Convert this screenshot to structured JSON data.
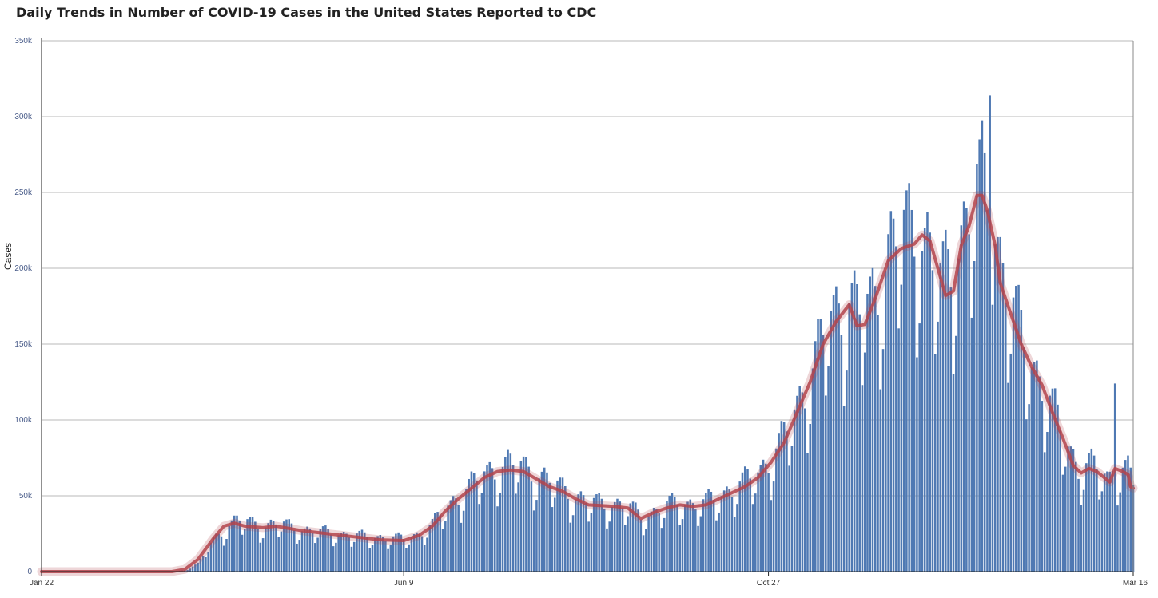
{
  "chart_data": {
    "type": "bar",
    "title": "Daily Trends in Number of COVID-19 Cases in the United States Reported to CDC",
    "ylabel": "Cases",
    "xlabel": "",
    "ylim": [
      0,
      350000
    ],
    "y_ticks": [
      0,
      50000,
      100000,
      150000,
      200000,
      250000,
      300000,
      350000
    ],
    "y_tick_labels": [
      "0",
      "50k",
      "100k",
      "150k",
      "200k",
      "250k",
      "300k",
      "350k"
    ],
    "x_tick_labels": [
      "Jan 22",
      "Jun 9",
      "Oct 27",
      "Mar 16"
    ],
    "x_tick_days": [
      0,
      139,
      279,
      419
    ],
    "num_days": 420,
    "grid": true,
    "bar_color": "#4f79b3",
    "line_color": "#b3444c",
    "series": [
      {
        "name": "Daily cases",
        "type": "bar",
        "keypoints": [
          [
            0,
            0
          ],
          [
            50,
            0
          ],
          [
            55,
            1000
          ],
          [
            60,
            5000
          ],
          [
            66,
            20000
          ],
          [
            72,
            30000
          ],
          [
            75,
            33000
          ],
          [
            80,
            31000
          ],
          [
            85,
            29000
          ],
          [
            90,
            31000
          ],
          [
            100,
            27000
          ],
          [
            110,
            25000
          ],
          [
            120,
            23000
          ],
          [
            130,
            22000
          ],
          [
            139,
            21000
          ],
          [
            145,
            24000
          ],
          [
            150,
            30000
          ],
          [
            155,
            40000
          ],
          [
            160,
            48000
          ],
          [
            165,
            55000
          ],
          [
            170,
            62000
          ],
          [
            175,
            67000
          ],
          [
            180,
            68000
          ],
          [
            185,
            67000
          ],
          [
            190,
            62000
          ],
          [
            195,
            57000
          ],
          [
            200,
            53000
          ],
          [
            205,
            48000
          ],
          [
            210,
            44000
          ],
          [
            220,
            43000
          ],
          [
            225,
            42000
          ],
          [
            230,
            35000
          ],
          [
            235,
            38000
          ],
          [
            240,
            42000
          ],
          [
            245,
            44000
          ],
          [
            250,
            43000
          ],
          [
            255,
            44000
          ],
          [
            260,
            48000
          ],
          [
            265,
            53000
          ],
          [
            270,
            57000
          ],
          [
            275,
            63000
          ],
          [
            280,
            72000
          ],
          [
            285,
            85000
          ],
          [
            290,
            105000
          ],
          [
            295,
            125000
          ],
          [
            300,
            150000
          ],
          [
            305,
            165000
          ],
          [
            310,
            175000
          ],
          [
            315,
            162000
          ],
          [
            320,
            175000
          ],
          [
            325,
            205000
          ],
          [
            330,
            215000
          ],
          [
            335,
            218000
          ],
          [
            340,
            210000
          ],
          [
            345,
            183000
          ],
          [
            350,
            195000
          ],
          [
            353,
            215000
          ],
          [
            357,
            232000
          ],
          [
            360,
            248000
          ],
          [
            363,
            240000
          ],
          [
            368,
            200000
          ],
          [
            372,
            170000
          ],
          [
            376,
            150000
          ],
          [
            380,
            133000
          ],
          [
            384,
            120000
          ],
          [
            390,
            95000
          ],
          [
            394,
            80000
          ],
          [
            398,
            66000
          ],
          [
            402,
            68000
          ],
          [
            405,
            65000
          ],
          [
            410,
            59000
          ],
          [
            412,
            68000
          ],
          [
            415,
            66000
          ],
          [
            417,
            64000
          ],
          [
            419,
            55000
          ]
        ]
      },
      {
        "name": "7-day moving average",
        "type": "line",
        "points": [
          [
            0,
            0
          ],
          [
            50,
            0
          ],
          [
            55,
            1500
          ],
          [
            60,
            8000
          ],
          [
            66,
            22000
          ],
          [
            70,
            30000
          ],
          [
            74,
            32000
          ],
          [
            78,
            30000
          ],
          [
            85,
            29000
          ],
          [
            90,
            30000
          ],
          [
            100,
            27000
          ],
          [
            110,
            25000
          ],
          [
            120,
            23000
          ],
          [
            130,
            21000
          ],
          [
            139,
            20500
          ],
          [
            145,
            24000
          ],
          [
            150,
            30000
          ],
          [
            155,
            40000
          ],
          [
            160,
            48000
          ],
          [
            165,
            55000
          ],
          [
            170,
            62000
          ],
          [
            175,
            66000
          ],
          [
            180,
            67000
          ],
          [
            185,
            66000
          ],
          [
            190,
            61000
          ],
          [
            195,
            56000
          ],
          [
            200,
            53000
          ],
          [
            205,
            48000
          ],
          [
            210,
            44000
          ],
          [
            220,
            43000
          ],
          [
            225,
            42000
          ],
          [
            230,
            35000
          ],
          [
            235,
            39000
          ],
          [
            240,
            42000
          ],
          [
            245,
            44000
          ],
          [
            250,
            43000
          ],
          [
            255,
            44000
          ],
          [
            260,
            48000
          ],
          [
            265,
            52000
          ],
          [
            270,
            56000
          ],
          [
            275,
            62000
          ],
          [
            280,
            72000
          ],
          [
            285,
            85000
          ],
          [
            290,
            105000
          ],
          [
            295,
            125000
          ],
          [
            300,
            150000
          ],
          [
            305,
            165000
          ],
          [
            310,
            176000
          ],
          [
            313,
            162000
          ],
          [
            316,
            163000
          ],
          [
            320,
            180000
          ],
          [
            325,
            205000
          ],
          [
            330,
            213000
          ],
          [
            335,
            216000
          ],
          [
            338,
            222000
          ],
          [
            341,
            218000
          ],
          [
            344,
            200000
          ],
          [
            347,
            182000
          ],
          [
            350,
            185000
          ],
          [
            353,
            215000
          ],
          [
            356,
            228000
          ],
          [
            359,
            248000
          ],
          [
            361,
            248000
          ],
          [
            363,
            238000
          ],
          [
            366,
            215000
          ],
          [
            368,
            190000
          ],
          [
            372,
            170000
          ],
          [
            376,
            150000
          ],
          [
            380,
            135000
          ],
          [
            384,
            123000
          ],
          [
            388,
            105000
          ],
          [
            392,
            88000
          ],
          [
            396,
            70000
          ],
          [
            399,
            65000
          ],
          [
            402,
            68000
          ],
          [
            405,
            66000
          ],
          [
            410,
            59000
          ],
          [
            412,
            68000
          ],
          [
            415,
            66000
          ],
          [
            417,
            64000
          ],
          [
            418,
            56000
          ],
          [
            419,
            55000
          ]
        ]
      }
    ]
  }
}
